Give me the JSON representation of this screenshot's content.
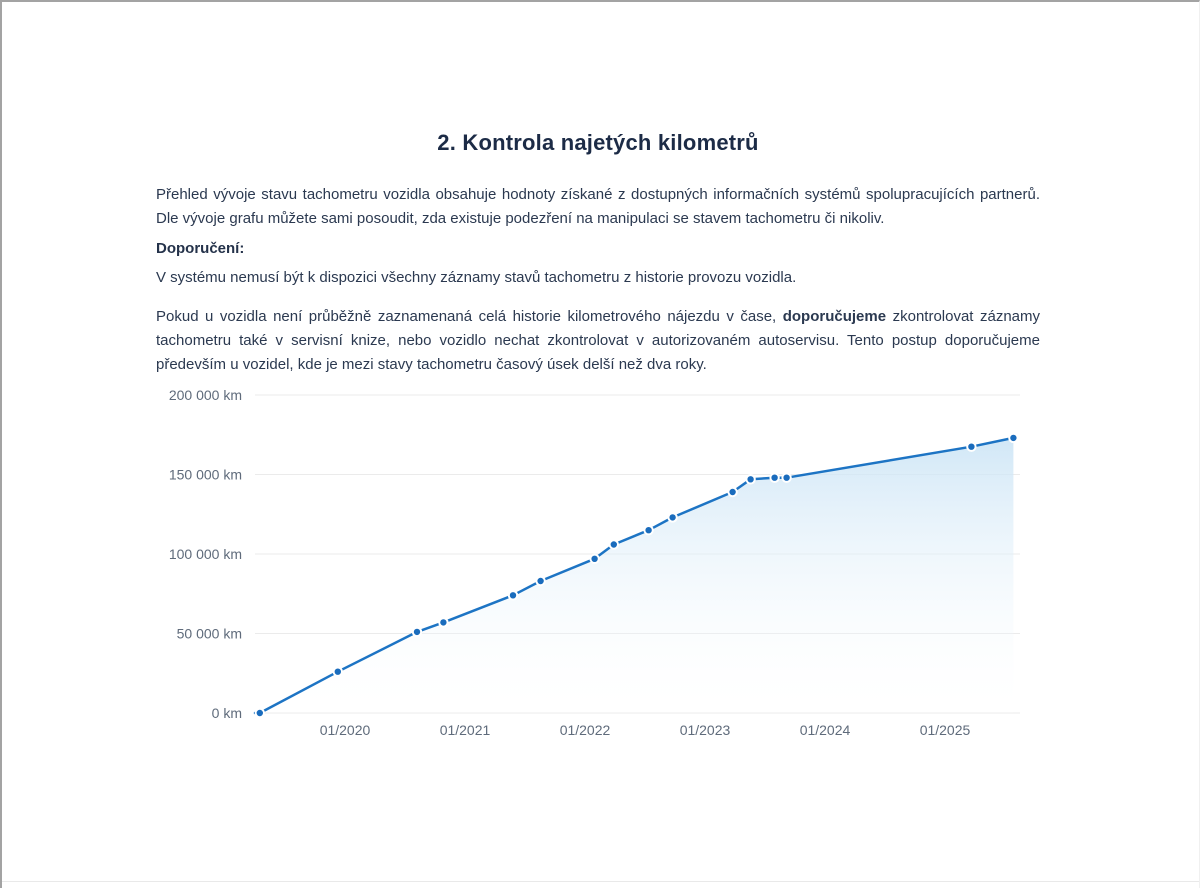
{
  "document": {
    "title": "2. Kontrola najetých kilometrů",
    "intro_paragraph": "Přehled vývoje stavu tachometru vozidla obsahuje hodnoty získané z dostupných informačních systémů spolupracujících partnerů. Dle vývoje grafu můžete sami posoudit, zda existuje podezření na manipulaci se stavem tachometru či nikoliv.",
    "recommendation_heading": "Doporučení:",
    "note_paragraph": "V systému nemusí být k dispozici všechny záznamy stavů tachometru z historie provozu vozidla.",
    "advice_part1": "Pokud u vozidla není průběžně zaznamenaná celá historie kilometrového nájezdu v čase, ",
    "advice_bold": "doporučujeme",
    "advice_part2": " zkontrolovat záznamy tachometru také v servisní knize, nebo vozidlo nechat zkontrolovat v autorizovaném autoservisu. Tento postup doporučujeme především u vozidel, kde je mezi stavy tachometru časový úsek delší než dva roky."
  },
  "chart_data": {
    "type": "area",
    "title": "",
    "xlabel": "",
    "ylabel": "",
    "xlim": [
      2019.25,
      2025.625
    ],
    "ylim": [
      0,
      200000
    ],
    "grid": "horizontal-only",
    "legend": "none",
    "line_color": "#1d74c4",
    "point_color": "#1a6cbd",
    "area_fill_top": "#c9e3f5",
    "axis_label_color": "#5f6b7b",
    "grid_color": "#ebebeb",
    "y_ticks": [
      {
        "value": 0,
        "label": "0 km"
      },
      {
        "value": 50000,
        "label": "50 000 km"
      },
      {
        "value": 100000,
        "label": "100 000 km"
      },
      {
        "value": 150000,
        "label": "150 000 km"
      },
      {
        "value": 200000,
        "label": "200 000 km"
      }
    ],
    "x_ticks": [
      {
        "year": 2020,
        "label": "01/2020"
      },
      {
        "year": 2021,
        "label": "01/2021"
      },
      {
        "year": 2022,
        "label": "01/2022"
      },
      {
        "year": 2023,
        "label": "01/2023"
      },
      {
        "year": 2024,
        "label": "01/2024"
      },
      {
        "year": 2025,
        "label": "01/2025"
      }
    ],
    "points": [
      {
        "x_year": 2019.29,
        "km": 0
      },
      {
        "x_year": 2019.94,
        "km": 26000
      },
      {
        "x_year": 2020.6,
        "km": 51000
      },
      {
        "x_year": 2020.82,
        "km": 57000
      },
      {
        "x_year": 2021.4,
        "km": 74000
      },
      {
        "x_year": 2021.63,
        "km": 83000
      },
      {
        "x_year": 2022.08,
        "km": 97000
      },
      {
        "x_year": 2022.24,
        "km": 106000
      },
      {
        "x_year": 2022.53,
        "km": 115000
      },
      {
        "x_year": 2022.73,
        "km": 123000
      },
      {
        "x_year": 2023.23,
        "km": 139000
      },
      {
        "x_year": 2023.38,
        "km": 147000
      },
      {
        "x_year": 2023.58,
        "km": 148000
      },
      {
        "x_year": 2023.68,
        "km": 148000
      },
      {
        "x_year": 2025.22,
        "km": 167500
      },
      {
        "x_year": 2025.57,
        "km": 173000
      }
    ]
  }
}
